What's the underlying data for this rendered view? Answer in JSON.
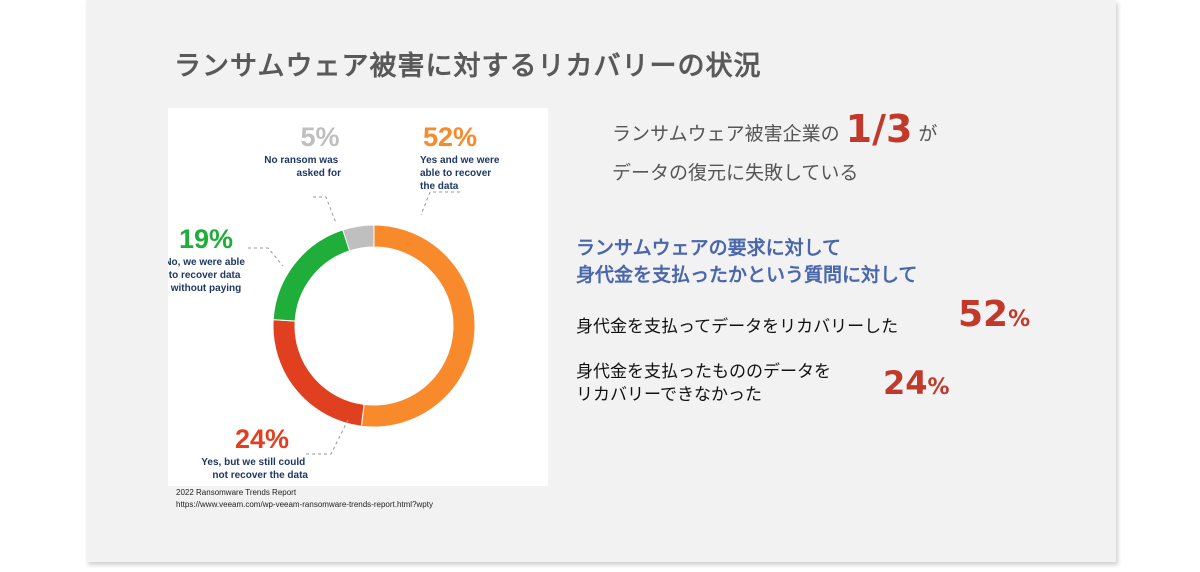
{
  "title": "ランサムウェア被害に対するリカバリーの状況",
  "source": {
    "line1": "2022 Ransomware Trends Report",
    "line2": "https://www.veeam.com/wp-veeam-ransomware-trends-report.html?wpty"
  },
  "headline": {
    "part1": "ランサムウェア被害企業の",
    "fraction": "1/3",
    "part2": "が",
    "line2": "データの復元に失敗している"
  },
  "question": {
    "line1": "ランサムウェアの要求に対して",
    "line2": "身代金を支払ったかという質問に対して"
  },
  "stat1": {
    "text": "身代金を支払ってデータをリカバリーした",
    "num": "52",
    "unit": "%"
  },
  "stat2": {
    "line1": "身代金を支払ったもののデータを",
    "line2": "リカバリーできなかった",
    "num": "24",
    "unit": "%"
  },
  "colors": {
    "orange": "#f98a2b",
    "red": "#e0401f",
    "green": "#1fae3a",
    "gray": "#bfbfbf",
    "accent_red": "#c0392b",
    "blue": "#4a66ac"
  },
  "chart_data": {
    "type": "pie",
    "series": [
      {
        "name": "Yes and we were able to recover the data",
        "value": 52,
        "pct_label": "52%",
        "label_lines": [
          "Yes and we were",
          "able to recover",
          "the data"
        ],
        "color": "#f98a2b"
      },
      {
        "name": "Yes, but we still could not recover the data",
        "value": 24,
        "pct_label": "24%",
        "label_lines": [
          "Yes, but we still could",
          "not recover the data"
        ],
        "color": "#e0401f"
      },
      {
        "name": "No, we were able to recover data without paying",
        "value": 19,
        "pct_label": "19%",
        "label_lines": [
          "No, we were able",
          "to recover data",
          "without paying"
        ],
        "color": "#1fae3a"
      },
      {
        "name": "No ransom was asked for",
        "value": 5,
        "pct_label": "5%",
        "label_lines": [
          "No ransom was",
          "asked for"
        ],
        "color": "#bfbfbf"
      }
    ]
  }
}
